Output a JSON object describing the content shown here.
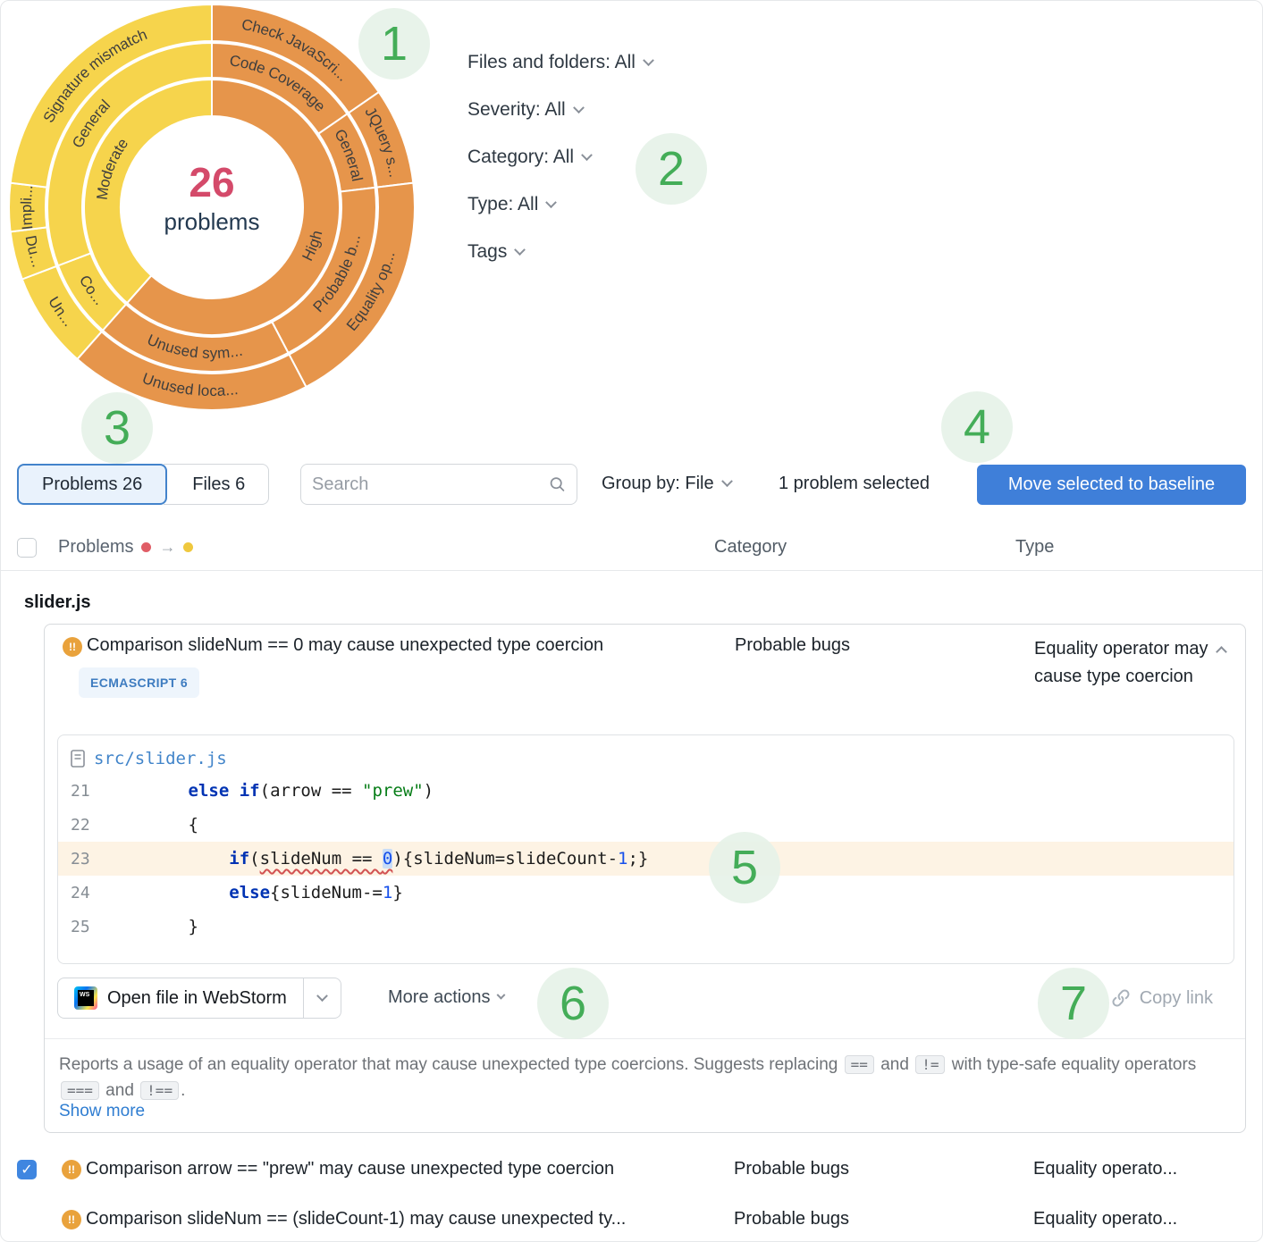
{
  "colors": {
    "orange": "#e6954b",
    "yellow": "#f6d44c",
    "accent_blue": "#3f7fd9",
    "badge_green": "#44ad58",
    "problem_count_red": "#d44a6a",
    "warn_orange": "#e9a23c"
  },
  "badges": [
    "1",
    "2",
    "3",
    "4",
    "5",
    "6",
    "7"
  ],
  "chart_data": {
    "type": "sunburst",
    "total": 26,
    "center_value": "26",
    "center_label": "problems",
    "rings": [
      {
        "name": "severity",
        "segments": [
          {
            "label": "High",
            "value": 16,
            "color": "#e6954b"
          },
          {
            "label": "Moderate",
            "value": 10,
            "color": "#f6d44c"
          }
        ]
      },
      {
        "name": "category",
        "segments": [
          {
            "label": "Code Coverage",
            "value": 4,
            "color": "#e6954b"
          },
          {
            "label": "General",
            "value": 2,
            "color": "#e6954b"
          },
          {
            "label": "Probable b...",
            "value": 5,
            "color": "#e6954b"
          },
          {
            "label": "Unused sym...",
            "value": 5,
            "color": "#e6954b"
          },
          {
            "label": "Co...",
            "value": 2,
            "color": "#f6d44c"
          },
          {
            "label": "General",
            "value": 8,
            "color": "#f6d44c"
          }
        ]
      },
      {
        "name": "type",
        "segments": [
          {
            "label": "Check JavaScri...",
            "value": 4,
            "color": "#e6954b"
          },
          {
            "label": "JQuery s...",
            "value": 2,
            "color": "#e6954b"
          },
          {
            "label": "Equality op...",
            "value": 5,
            "color": "#e6954b"
          },
          {
            "label": "Unused loca...",
            "value": 5,
            "color": "#e6954b"
          },
          {
            "label": "Un...",
            "value": 2,
            "color": "#f6d44c"
          },
          {
            "label": "Du...",
            "value": 1,
            "color": "#f6d44c"
          },
          {
            "label": "Impli...",
            "value": 1,
            "color": "#f6d44c"
          },
          {
            "label": "Signature mismatch",
            "value": 6,
            "color": "#f6d44c"
          }
        ]
      }
    ]
  },
  "filters": {
    "items": [
      {
        "label": "Files and folders: All"
      },
      {
        "label": "Severity: All"
      },
      {
        "label": "Category: All"
      },
      {
        "label": "Type: All"
      },
      {
        "label": "Tags"
      }
    ]
  },
  "toolbar": {
    "tabs": [
      {
        "label": "Problems 26"
      },
      {
        "label": "Files 6"
      }
    ],
    "search_placeholder": "Search",
    "group_by": "Group by: File",
    "selected_info": "1 problem selected",
    "baseline_button": "Move selected to baseline"
  },
  "table": {
    "columns": {
      "problems": "Problems",
      "category": "Category",
      "type": "Type"
    }
  },
  "group": {
    "file": "slider.js"
  },
  "problem": {
    "title": "Comparison slideNum == 0 may cause unexpected type coercion",
    "tag": "ECMASCRIPT 6",
    "category": "Probable bugs",
    "type": "Equality operator may cause type coercion",
    "file_link": "src/slider.js",
    "code_lines": [
      {
        "no": "21",
        "tokens": [
          {
            "t": "        "
          },
          {
            "t": "else",
            "c": "kw"
          },
          {
            "t": " "
          },
          {
            "t": "if",
            "c": "kw"
          },
          {
            "t": "(arrow == "
          },
          {
            "t": "\"prew\"",
            "c": "str"
          },
          {
            "t": ")"
          }
        ]
      },
      {
        "no": "22",
        "tokens": [
          {
            "t": "        {"
          }
        ]
      },
      {
        "no": "23",
        "hl": true,
        "tokens": [
          {
            "t": "            "
          },
          {
            "t": "if",
            "c": "kw"
          },
          {
            "t": "("
          },
          {
            "t": "slideNum == ",
            "c": "wavy"
          },
          {
            "t": "0",
            "c": "wavy num sel"
          },
          {
            "t": "){slideNum=slideCount-"
          },
          {
            "t": "1",
            "c": "num"
          },
          {
            "t": ";}"
          }
        ]
      },
      {
        "no": "24",
        "tokens": [
          {
            "t": "            "
          },
          {
            "t": "else",
            "c": "kw"
          },
          {
            "t": "{slideNum-="
          },
          {
            "t": "1",
            "c": "num"
          },
          {
            "t": "}"
          }
        ]
      },
      {
        "no": "25",
        "tokens": [
          {
            "t": "        }"
          }
        ]
      }
    ],
    "open_button": "Open file in WebStorm",
    "more_actions": "More actions",
    "copy_link": "Copy link",
    "description_parts": [
      {
        "t": "Reports a usage of an equality operator that may cause unexpected type coercions. Suggests replacing "
      },
      {
        "t": "==",
        "chip": true
      },
      {
        "t": " and "
      },
      {
        "t": "!=",
        "chip": true
      },
      {
        "t": " with type-safe equality operators "
      },
      {
        "t": "===",
        "chip": true
      },
      {
        "t": " and "
      },
      {
        "t": "!==",
        "chip": true
      },
      {
        "t": "."
      }
    ],
    "show_more": "Show more"
  },
  "rows": [
    {
      "checked": true,
      "title": "Comparison arrow == \"prew\" may cause unexpected type coercion",
      "category": "Probable bugs",
      "type": "Equality operato..."
    },
    {
      "checked": false,
      "title": "Comparison slideNum == (slideCount-1) may cause unexpected ty...",
      "category": "Probable bugs",
      "type": "Equality operato..."
    }
  ]
}
